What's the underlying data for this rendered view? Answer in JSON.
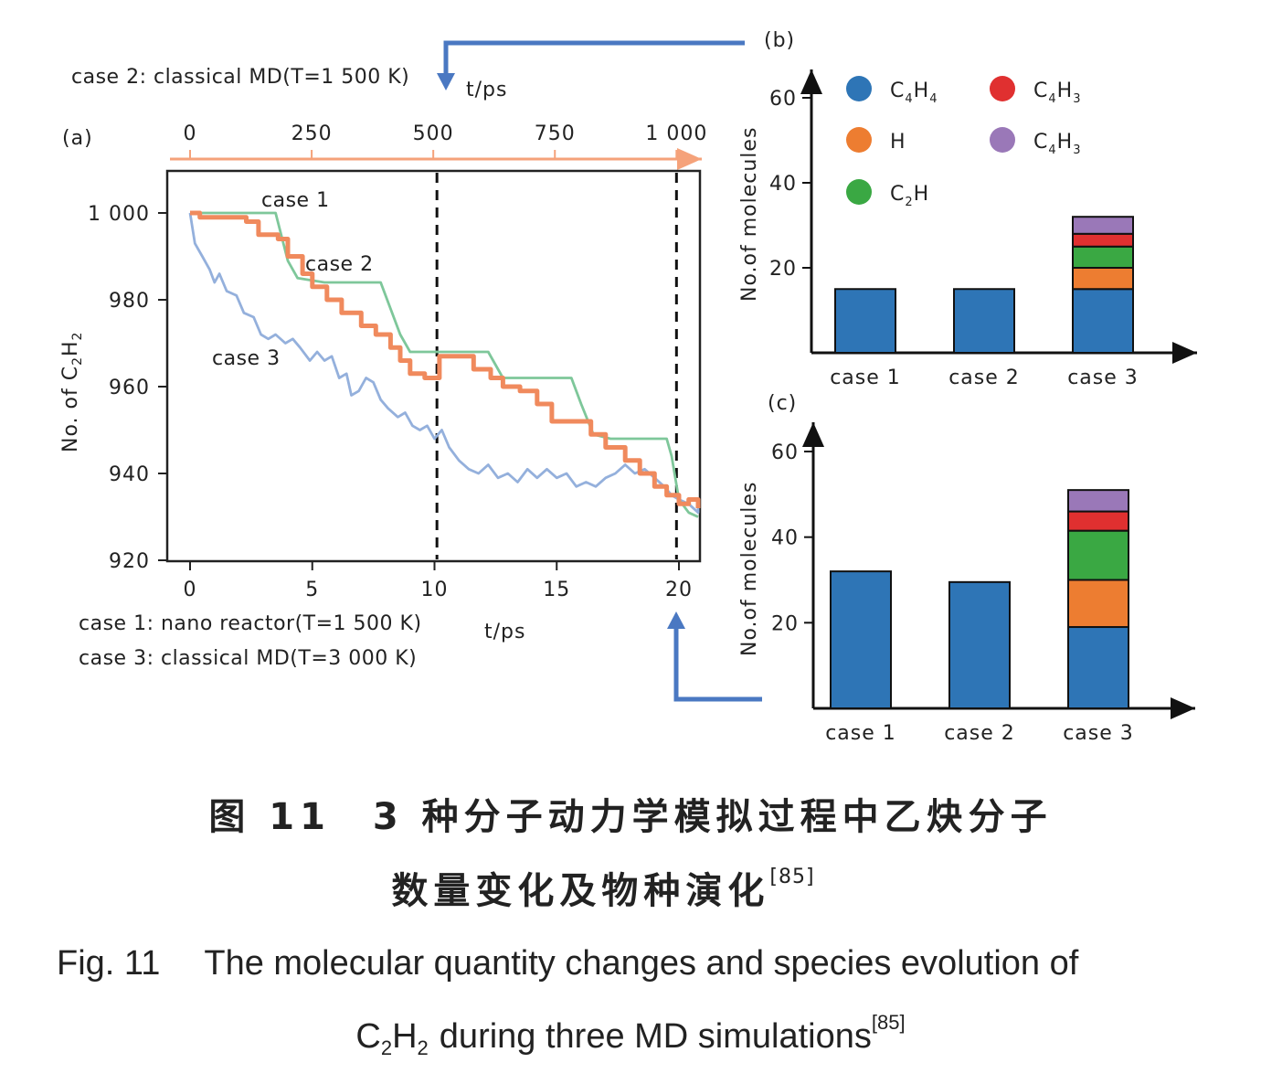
{
  "annotations": {
    "case2_note": "case 2: classical MD(T=1 500 K)",
    "case1_note": "case 1: nano reactor(T=1 500 K)",
    "case3_note": "case 3: classical MD(T=3 000 K)",
    "top_axis_unit": "t/ps",
    "bottom_axis_unit": "t/ps"
  },
  "caption": {
    "cn_line1": "图 11　3 种分子动力学模拟过程中乙炔分子",
    "cn_line2": "数量变化及物种演化",
    "cn_ref": "[85]",
    "en_prefix": "Fig. 11",
    "en_line1": "The molecular quantity changes and species evolution of",
    "en_line2": "during three MD simulations",
    "en_ref": "[85]"
  },
  "colors": {
    "case1": "#7ec79a",
    "case2": "#f08a5d",
    "case3": "#94b0dc",
    "C4H4": "#2e75b6",
    "H": "#ed7d31",
    "C2H": "#3aa843",
    "C4H3_red": "#e03030",
    "C4H3_purple": "#9a78b8",
    "arrow": "#4a78c2",
    "top_axis": "#f5a27a"
  },
  "chart_data": [
    {
      "id": "a",
      "panel_label": "(a)",
      "type": "line",
      "ylabel_main": "No. of C",
      "ylabel_sub1": "2",
      "ylabel_mid": "H",
      "ylabel_sub2": "2",
      "xlabel": "t/ps",
      "top_xlabel": "t/ps",
      "xlim": [
        0,
        21
      ],
      "ylim": [
        920,
        1010
      ],
      "xticks": [
        0,
        5,
        10,
        15,
        20
      ],
      "xtick_labels": [
        "0",
        "5",
        "10",
        "15",
        "20"
      ],
      "yticks": [
        920,
        940,
        960,
        980,
        1000
      ],
      "ytick_labels": [
        "920",
        "940",
        "960",
        "980",
        "1 000"
      ],
      "top_axis": {
        "unit": "t/ps",
        "range": [
          0,
          1000
        ],
        "ticks": [
          0,
          250,
          500,
          750,
          1000
        ],
        "tick_labels": [
          "0",
          "250",
          "500",
          "750",
          "1 000"
        ],
        "maps_bottom_at_0": 0,
        "maps_bottom_at_1000": 19.9
      },
      "vlines": [
        10.1,
        19.9
      ],
      "series": [
        {
          "name": "case 1",
          "color": "#7ec79a",
          "points": [
            [
              0,
              1000
            ],
            [
              3.5,
              1000
            ],
            [
              4.0,
              989
            ],
            [
              4.4,
              985
            ],
            [
              5.5,
              984
            ],
            [
              7.8,
              984
            ],
            [
              8.6,
              972
            ],
            [
              9.0,
              968
            ],
            [
              12.2,
              968
            ],
            [
              12.8,
              962
            ],
            [
              15.6,
              962
            ],
            [
              16.0,
              956
            ],
            [
              16.5,
              949
            ],
            [
              17.2,
              948
            ],
            [
              19.5,
              948
            ],
            [
              19.7,
              944
            ],
            [
              20.0,
              934
            ],
            [
              20.4,
              931
            ],
            [
              21.0,
              930
            ]
          ]
        },
        {
          "name": "case 2",
          "color": "#f08a5d",
          "points": [
            [
              0,
              1000
            ],
            [
              0.4,
              999
            ],
            [
              2.3,
              998
            ],
            [
              2.8,
              995
            ],
            [
              3.6,
              994
            ],
            [
              4.0,
              990
            ],
            [
              4.6,
              986
            ],
            [
              5.0,
              983
            ],
            [
              5.6,
              980
            ],
            [
              6.2,
              977
            ],
            [
              7.0,
              974
            ],
            [
              7.6,
              972
            ],
            [
              8.2,
              969
            ],
            [
              8.6,
              966
            ],
            [
              9.0,
              963
            ],
            [
              9.6,
              962
            ],
            [
              10.2,
              967
            ],
            [
              11.2,
              967
            ],
            [
              11.6,
              964
            ],
            [
              12.3,
              962
            ],
            [
              12.8,
              960
            ],
            [
              13.5,
              959
            ],
            [
              14.2,
              956
            ],
            [
              14.8,
              952
            ],
            [
              15.8,
              952
            ],
            [
              16.4,
              949
            ],
            [
              17.0,
              946
            ],
            [
              17.8,
              943
            ],
            [
              18.4,
              940
            ],
            [
              19.0,
              937
            ],
            [
              19.5,
              935
            ],
            [
              20.0,
              933
            ],
            [
              20.4,
              934
            ],
            [
              21.0,
              932
            ]
          ]
        },
        {
          "name": "case 3",
          "color": "#94b0dc",
          "points": [
            [
              0,
              1000
            ],
            [
              0.2,
              993
            ],
            [
              0.5,
              990
            ],
            [
              0.8,
              987
            ],
            [
              1.0,
              984
            ],
            [
              1.2,
              986
            ],
            [
              1.5,
              982
            ],
            [
              1.9,
              981
            ],
            [
              2.2,
              977
            ],
            [
              2.6,
              976
            ],
            [
              2.9,
              972
            ],
            [
              3.2,
              971
            ],
            [
              3.5,
              972
            ],
            [
              3.9,
              970
            ],
            [
              4.2,
              971
            ],
            [
              4.5,
              969
            ],
            [
              4.9,
              966
            ],
            [
              5.2,
              968
            ],
            [
              5.5,
              966
            ],
            [
              5.8,
              967
            ],
            [
              6.1,
              962
            ],
            [
              6.4,
              963
            ],
            [
              6.6,
              958
            ],
            [
              6.9,
              959
            ],
            [
              7.2,
              962
            ],
            [
              7.5,
              961
            ],
            [
              7.8,
              957
            ],
            [
              8.1,
              955
            ],
            [
              8.5,
              953
            ],
            [
              8.8,
              954
            ],
            [
              9.1,
              951
            ],
            [
              9.4,
              950
            ],
            [
              9.7,
              951
            ],
            [
              10.0,
              948
            ],
            [
              10.3,
              950
            ],
            [
              10.6,
              946
            ],
            [
              11.0,
              943
            ],
            [
              11.4,
              941
            ],
            [
              11.8,
              940
            ],
            [
              12.2,
              942
            ],
            [
              12.6,
              939
            ],
            [
              13.0,
              940
            ],
            [
              13.4,
              938
            ],
            [
              13.8,
              941
            ],
            [
              14.2,
              939
            ],
            [
              14.6,
              941
            ],
            [
              15.0,
              939
            ],
            [
              15.4,
              940
            ],
            [
              15.8,
              937
            ],
            [
              16.2,
              938
            ],
            [
              16.6,
              937
            ],
            [
              17.0,
              939
            ],
            [
              17.4,
              940
            ],
            [
              17.8,
              942
            ],
            [
              18.2,
              940
            ],
            [
              18.6,
              941
            ],
            [
              19.0,
              939
            ],
            [
              19.4,
              937
            ],
            [
              19.7,
              935
            ],
            [
              20.0,
              934
            ],
            [
              20.4,
              933
            ],
            [
              20.8,
              931
            ],
            [
              21.0,
              932
            ]
          ]
        }
      ],
      "labels_on_plot": [
        "case 1",
        "case 2",
        "case 3"
      ]
    },
    {
      "id": "b",
      "panel_label": "(b)",
      "type": "bar",
      "stacked": true,
      "ylabel": "No.of molecules",
      "categories": [
        "case 1",
        "case 2",
        "case 3"
      ],
      "ylim": [
        0,
        65
      ],
      "yticks": [
        20,
        40,
        60
      ],
      "ytick_labels": [
        "20",
        "40",
        "60"
      ],
      "legend": [
        {
          "sym": "C",
          "sub1": "4",
          "sym2": "H",
          "sub2": "4",
          "color": "#2e75b6"
        },
        {
          "sym": "C",
          "sub1": "4",
          "sym2": "H",
          "sub2": "3",
          "color": "#e03030"
        },
        {
          "sym": "H",
          "sub1": "",
          "sym2": "",
          "sub2": "",
          "color": "#ed7d31"
        },
        {
          "sym": "C",
          "sub1": "4",
          "sym2": "H",
          "sub2": "3",
          "color": "#9a78b8"
        },
        {
          "sym": "C",
          "sub1": "2",
          "sym2": "H",
          "sub2": "",
          "color": "#3aa843"
        }
      ],
      "series": [
        {
          "name": "C4H4",
          "color": "#2e75b6",
          "values": [
            15,
            15,
            15
          ]
        },
        {
          "name": "H",
          "color": "#ed7d31",
          "values": [
            0,
            0,
            5
          ]
        },
        {
          "name": "C2H",
          "color": "#3aa843",
          "values": [
            0,
            0,
            5
          ]
        },
        {
          "name": "C4H3",
          "color": "#e03030",
          "values": [
            0,
            0,
            3
          ]
        },
        {
          "name": "C4H3",
          "color": "#9a78b8",
          "values": [
            0,
            0,
            4
          ]
        }
      ]
    },
    {
      "id": "c",
      "panel_label": "(c)",
      "type": "bar",
      "stacked": true,
      "ylabel": "No.of molecules",
      "categories": [
        "case 1",
        "case 2",
        "case 3"
      ],
      "ylim": [
        0,
        65
      ],
      "yticks": [
        20,
        40,
        60
      ],
      "ytick_labels": [
        "20",
        "40",
        "60"
      ],
      "series": [
        {
          "name": "C4H4",
          "color": "#2e75b6",
          "values": [
            32,
            29.5,
            19
          ]
        },
        {
          "name": "H",
          "color": "#ed7d31",
          "values": [
            0,
            0,
            11
          ]
        },
        {
          "name": "C2H",
          "color": "#3aa843",
          "values": [
            0,
            0,
            11.5
          ]
        },
        {
          "name": "C4H3",
          "color": "#e03030",
          "values": [
            0,
            0,
            4.5
          ]
        },
        {
          "name": "C4H3",
          "color": "#9a78b8",
          "values": [
            0,
            0,
            5
          ]
        }
      ]
    }
  ]
}
